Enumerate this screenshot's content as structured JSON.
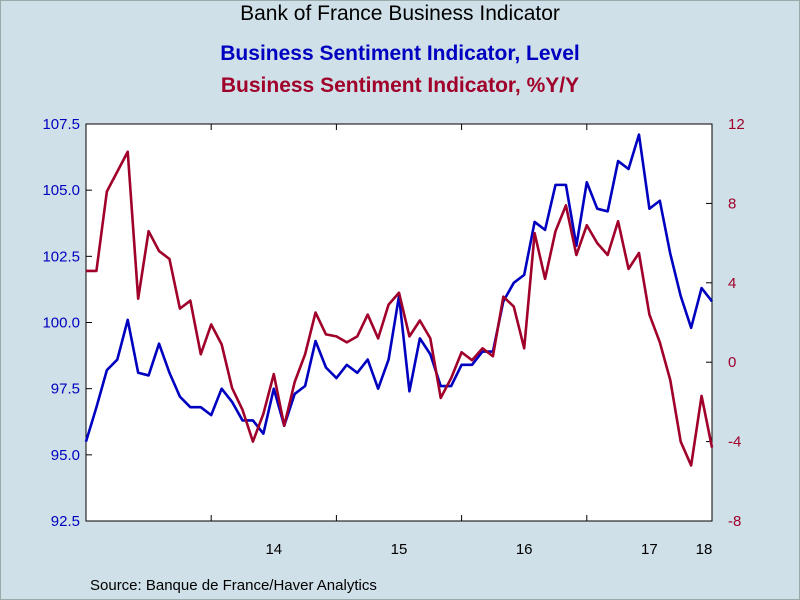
{
  "chart_data": {
    "type": "line",
    "title": "Bank of France Business Indicator",
    "source": "Source:  Banque de France/Haver Analytics",
    "x_ticks": [
      "14",
      "15",
      "16",
      "17",
      "18"
    ],
    "x_start": "2013-01",
    "x_end": "2018-01",
    "left_axis": {
      "ticks": [
        "92.5",
        "95.0",
        "97.5",
        "100.0",
        "102.5",
        "105.0",
        "107.5"
      ],
      "ylim": [
        92.5,
        107.5
      ],
      "color": "#0000c0"
    },
    "right_axis": {
      "ticks": [
        "-8",
        "-4",
        "0",
        "4",
        "8",
        "12"
      ],
      "ylim": [
        -8,
        12
      ],
      "color": "#a0002a"
    },
    "series": [
      {
        "name": "Business Sentiment Indicator, Level",
        "axis": "left",
        "color": "#0000c0",
        "values": [
          95.5,
          96.8,
          98.2,
          98.6,
          100.1,
          98.1,
          98.0,
          99.2,
          98.1,
          97.2,
          96.8,
          96.8,
          96.5,
          97.5,
          97.0,
          96.3,
          96.3,
          95.8,
          97.5,
          96.1,
          97.3,
          97.6,
          99.3,
          98.3,
          97.9,
          98.4,
          98.1,
          98.6,
          97.5,
          98.6,
          101.0,
          97.4,
          99.4,
          98.8,
          97.6,
          97.6,
          98.4,
          98.4,
          98.9,
          98.9,
          100.8,
          101.5,
          101.8,
          103.8,
          103.5,
          105.2,
          105.2,
          102.9,
          105.3,
          104.3,
          104.2,
          106.1,
          105.8,
          107.1,
          104.3,
          104.6,
          102.6,
          101.0,
          99.8,
          101.3,
          100.8
        ]
      },
      {
        "name": "Business Sentiment Indicator, %Y/Y",
        "axis": "right",
        "color": "#a0002a",
        "values": [
          4.6,
          4.6,
          8.6,
          9.6,
          10.6,
          3.2,
          6.6,
          5.6,
          5.2,
          2.7,
          3.1,
          0.4,
          1.9,
          0.9,
          -1.3,
          -2.4,
          -4.0,
          -2.6,
          -0.6,
          -3.2,
          -1.0,
          0.4,
          2.5,
          1.4,
          1.3,
          1.0,
          1.3,
          2.4,
          1.2,
          2.9,
          3.5,
          1.3,
          2.1,
          1.2,
          -1.8,
          -0.8,
          0.5,
          0.1,
          0.7,
          0.3,
          3.3,
          2.8,
          0.7,
          6.5,
          4.2,
          6.6,
          7.9,
          5.4,
          6.9,
          6.0,
          5.4,
          7.1,
          4.7,
          5.5,
          2.4,
          1.0,
          -0.9,
          -4.0,
          -5.2,
          -1.7,
          -4.3
        ]
      }
    ]
  }
}
